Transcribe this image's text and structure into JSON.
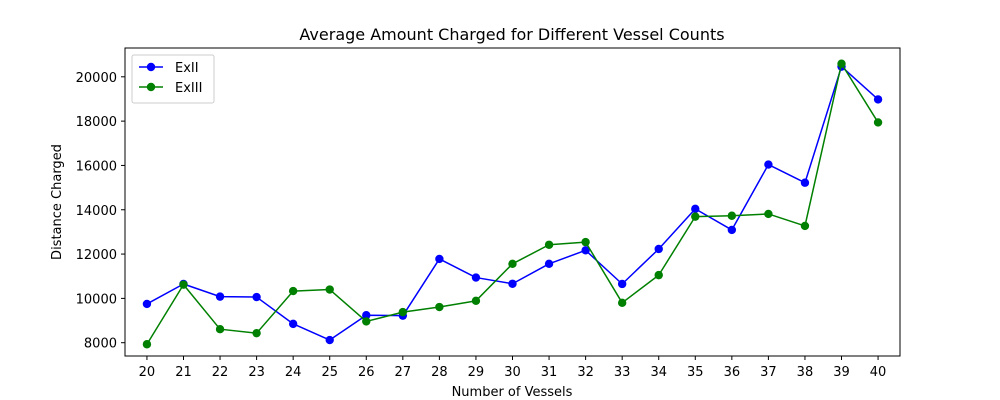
{
  "chart_data": {
    "type": "line",
    "title": "Average Amount Charged for Different Vessel Counts",
    "xlabel": "Number of Vessels",
    "ylabel": "Distance Charged",
    "x": [
      20,
      21,
      22,
      23,
      24,
      25,
      26,
      27,
      28,
      29,
      30,
      31,
      32,
      33,
      34,
      35,
      36,
      37,
      38,
      39,
      40
    ],
    "xlim": [
      19.4,
      40.6
    ],
    "ylim": [
      7400,
      21300
    ],
    "yticks": [
      8000,
      10000,
      12000,
      14000,
      16000,
      18000,
      20000
    ],
    "grid": false,
    "legend": "top-left",
    "series": [
      {
        "name": "ExII",
        "color": "#0000ff",
        "values": [
          9750,
          10650,
          10080,
          10060,
          8850,
          8120,
          9240,
          9220,
          11780,
          10940,
          10660,
          11560,
          12170,
          10650,
          12230,
          14040,
          13090,
          16040,
          15220,
          20460,
          18980
        ]
      },
      {
        "name": "ExIII",
        "color": "#008000",
        "values": [
          7930,
          10620,
          8610,
          8430,
          10330,
          10400,
          8960,
          9380,
          9610,
          9890,
          11560,
          12420,
          12540,
          9800,
          11050,
          13690,
          13730,
          13810,
          13270,
          20590,
          17940
        ]
      }
    ]
  }
}
